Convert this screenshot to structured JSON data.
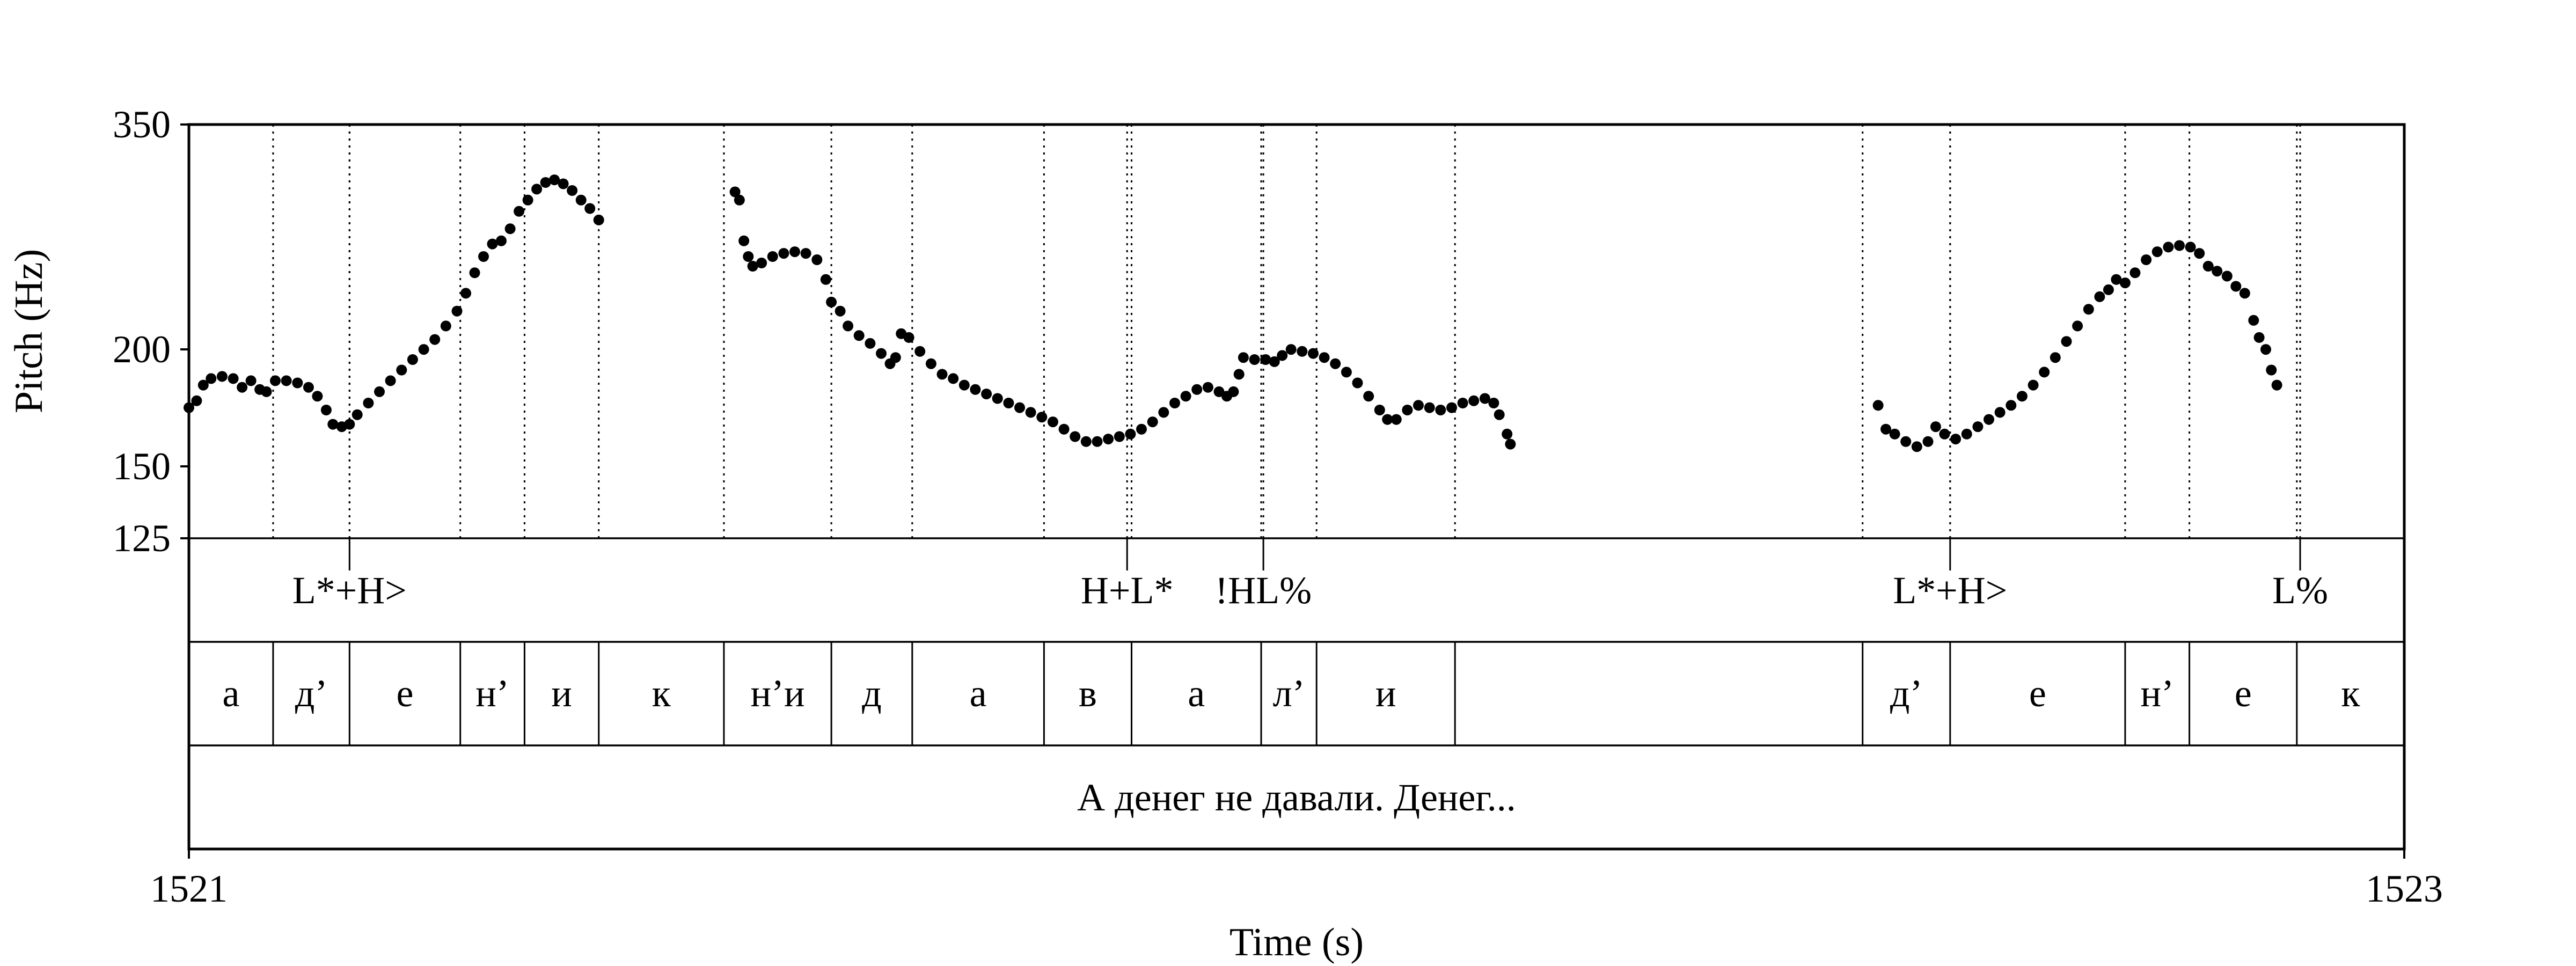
{
  "chart_data": {
    "type": "scatter",
    "xlabel": "Time (s)",
    "ylabel": "Pitch (Hz)",
    "xlim": [
      1521,
      1523
    ],
    "ylim": [
      125,
      350
    ],
    "y_scale": "log",
    "x_tick_labels": [
      "1521",
      "1523"
    ],
    "y_ticks": [
      125,
      150,
      200,
      350
    ],
    "y_tick_labels": [
      "125",
      "150",
      "200",
      "350"
    ],
    "grid": false,
    "series": [
      {
        "points": [
          [
            1521.0,
            173
          ],
          [
            1521.007,
            176
          ],
          [
            1521.013,
            183
          ],
          [
            1521.02,
            186
          ],
          [
            1521.03,
            187
          ],
          [
            1521.04,
            186
          ],
          [
            1521.048,
            182
          ],
          [
            1521.056,
            185
          ],
          [
            1521.064,
            181
          ],
          [
            1521.07,
            180
          ],
          [
            1521.078,
            185
          ],
          [
            1521.088,
            185
          ],
          [
            1521.098,
            184
          ],
          [
            1521.108,
            182
          ],
          [
            1521.116,
            178
          ],
          [
            1521.124,
            172
          ],
          [
            1521.13,
            166
          ],
          [
            1521.138,
            165
          ],
          [
            1521.145,
            166
          ],
          [
            1521.152,
            170
          ],
          [
            1521.162,
            175
          ],
          [
            1521.172,
            180
          ],
          [
            1521.182,
            185
          ],
          [
            1521.192,
            190
          ],
          [
            1521.202,
            195
          ],
          [
            1521.212,
            200
          ],
          [
            1521.222,
            205
          ],
          [
            1521.232,
            212
          ],
          [
            1521.242,
            220
          ],
          [
            1521.25,
            230
          ],
          [
            1521.258,
            242
          ],
          [
            1521.266,
            252
          ],
          [
            1521.274,
            260
          ],
          [
            1521.282,
            262
          ],
          [
            1521.29,
            270
          ],
          [
            1521.298,
            282
          ],
          [
            1521.306,
            290
          ],
          [
            1521.314,
            298
          ],
          [
            1521.322,
            303
          ],
          [
            1521.33,
            305
          ],
          [
            1521.338,
            302
          ],
          [
            1521.346,
            297
          ],
          [
            1521.354,
            290
          ],
          [
            1521.362,
            284
          ],
          [
            1521.37,
            276
          ],
          [
            1521.493,
            296
          ],
          [
            1521.497,
            290
          ],
          [
            1521.501,
            262
          ],
          [
            1521.505,
            252
          ],
          [
            1521.509,
            246
          ],
          [
            1521.517,
            248
          ],
          [
            1521.527,
            252
          ],
          [
            1521.537,
            254
          ],
          [
            1521.547,
            255
          ],
          [
            1521.557,
            254
          ],
          [
            1521.567,
            250
          ],
          [
            1521.575,
            238
          ],
          [
            1521.58,
            225
          ],
          [
            1521.588,
            220
          ],
          [
            1521.595,
            212
          ],
          [
            1521.605,
            207
          ],
          [
            1521.615,
            203
          ],
          [
            1521.625,
            198
          ],
          [
            1521.633,
            193
          ],
          [
            1521.638,
            196
          ],
          [
            1521.643,
            208
          ],
          [
            1521.65,
            206
          ],
          [
            1521.66,
            199
          ],
          [
            1521.67,
            193
          ],
          [
            1521.68,
            188
          ],
          [
            1521.69,
            186
          ],
          [
            1521.7,
            183
          ],
          [
            1521.71,
            181
          ],
          [
            1521.72,
            179
          ],
          [
            1521.73,
            177
          ],
          [
            1521.74,
            175
          ],
          [
            1521.75,
            173
          ],
          [
            1521.76,
            171
          ],
          [
            1521.77,
            169
          ],
          [
            1521.78,
            167
          ],
          [
            1521.79,
            164
          ],
          [
            1521.8,
            161
          ],
          [
            1521.81,
            159
          ],
          [
            1521.82,
            159
          ],
          [
            1521.83,
            160
          ],
          [
            1521.84,
            161
          ],
          [
            1521.85,
            162
          ],
          [
            1521.86,
            164
          ],
          [
            1521.87,
            167
          ],
          [
            1521.88,
            171
          ],
          [
            1521.89,
            175
          ],
          [
            1521.9,
            178
          ],
          [
            1521.91,
            181
          ],
          [
            1521.92,
            182
          ],
          [
            1521.93,
            180
          ],
          [
            1521.937,
            178
          ],
          [
            1521.943,
            180
          ],
          [
            1521.948,
            188
          ],
          [
            1521.952,
            196
          ],
          [
            1521.962,
            195
          ],
          [
            1521.972,
            195
          ],
          [
            1521.98,
            194
          ],
          [
            1521.987,
            197
          ],
          [
            1521.995,
            200
          ],
          [
            1522.005,
            199
          ],
          [
            1522.015,
            198
          ],
          [
            1522.025,
            196
          ],
          [
            1522.035,
            193
          ],
          [
            1522.045,
            189
          ],
          [
            1522.055,
            184
          ],
          [
            1522.065,
            178
          ],
          [
            1522.075,
            172
          ],
          [
            1522.082,
            168
          ],
          [
            1522.09,
            168
          ],
          [
            1522.1,
            172
          ],
          [
            1522.11,
            174
          ],
          [
            1522.12,
            173
          ],
          [
            1522.13,
            172
          ],
          [
            1522.14,
            173
          ],
          [
            1522.15,
            175
          ],
          [
            1522.16,
            176
          ],
          [
            1522.17,
            177
          ],
          [
            1522.178,
            175
          ],
          [
            1522.183,
            170
          ],
          [
            1522.19,
            162
          ],
          [
            1522.193,
            158
          ],
          [
            1522.525,
            174
          ],
          [
            1522.532,
            164
          ],
          [
            1522.54,
            162
          ],
          [
            1522.55,
            159
          ],
          [
            1522.56,
            157
          ],
          [
            1522.57,
            159
          ],
          [
            1522.577,
            165
          ],
          [
            1522.585,
            162
          ],
          [
            1522.595,
            160
          ],
          [
            1522.605,
            162
          ],
          [
            1522.615,
            165
          ],
          [
            1522.625,
            168
          ],
          [
            1522.635,
            171
          ],
          [
            1522.645,
            174
          ],
          [
            1522.655,
            178
          ],
          [
            1522.665,
            183
          ],
          [
            1522.675,
            189
          ],
          [
            1522.685,
            196
          ],
          [
            1522.695,
            204
          ],
          [
            1522.705,
            212
          ],
          [
            1522.715,
            221
          ],
          [
            1522.725,
            228
          ],
          [
            1522.733,
            232
          ],
          [
            1522.74,
            238
          ],
          [
            1522.748,
            236
          ],
          [
            1522.757,
            242
          ],
          [
            1522.767,
            250
          ],
          [
            1522.777,
            255
          ],
          [
            1522.787,
            258
          ],
          [
            1522.797,
            259
          ],
          [
            1522.807,
            258
          ],
          [
            1522.815,
            254
          ],
          [
            1522.823,
            246
          ],
          [
            1522.831,
            243
          ],
          [
            1522.84,
            240
          ],
          [
            1522.848,
            234
          ],
          [
            1522.856,
            230
          ],
          [
            1522.864,
            215
          ],
          [
            1522.869,
            206
          ],
          [
            1522.875,
            200
          ],
          [
            1522.88,
            190
          ],
          [
            1522.885,
            183
          ]
        ]
      }
    ]
  },
  "tiers": {
    "tones": [
      {
        "t": 1521.145,
        "label": "L*+H>",
        "solid": true
      },
      {
        "t": 1521.847,
        "label": "H+L*",
        "solid": true
      },
      {
        "t": 1521.97,
        "label": "!HL%",
        "solid": true
      },
      {
        "t": 1522.59,
        "label": "L*+H>",
        "solid": true
      },
      {
        "t": 1522.906,
        "label": "L%",
        "solid": true
      }
    ],
    "segments_start": 1521.0,
    "segments": [
      {
        "label": "а",
        "end": 1521.076
      },
      {
        "label": "д’",
        "end": 1521.145
      },
      {
        "label": "е",
        "end": 1521.245
      },
      {
        "label": "н’",
        "end": 1521.303
      },
      {
        "label": "и",
        "end": 1521.37
      },
      {
        "label": "к",
        "end": 1521.483
      },
      {
        "label": "н’и",
        "end": 1521.58
      },
      {
        "label": "д",
        "end": 1521.653
      },
      {
        "label": "а",
        "end": 1521.772
      },
      {
        "label": "в",
        "end": 1521.851
      },
      {
        "label": "а",
        "end": 1521.968
      },
      {
        "label": "л’",
        "end": 1522.018
      },
      {
        "label": "и",
        "end": 1522.143
      },
      {
        "label": "",
        "end": 1522.511
      },
      {
        "label": "д’",
        "end": 1522.59
      },
      {
        "label": "е",
        "end": 1522.748
      },
      {
        "label": "н’",
        "end": 1522.806
      },
      {
        "label": "е",
        "end": 1522.903
      },
      {
        "label": "к",
        "end": 1523.0
      }
    ],
    "sentence": "А денег не давали. Денег..."
  },
  "colors": {
    "ink": "#000000",
    "background": "#ffffff"
  }
}
